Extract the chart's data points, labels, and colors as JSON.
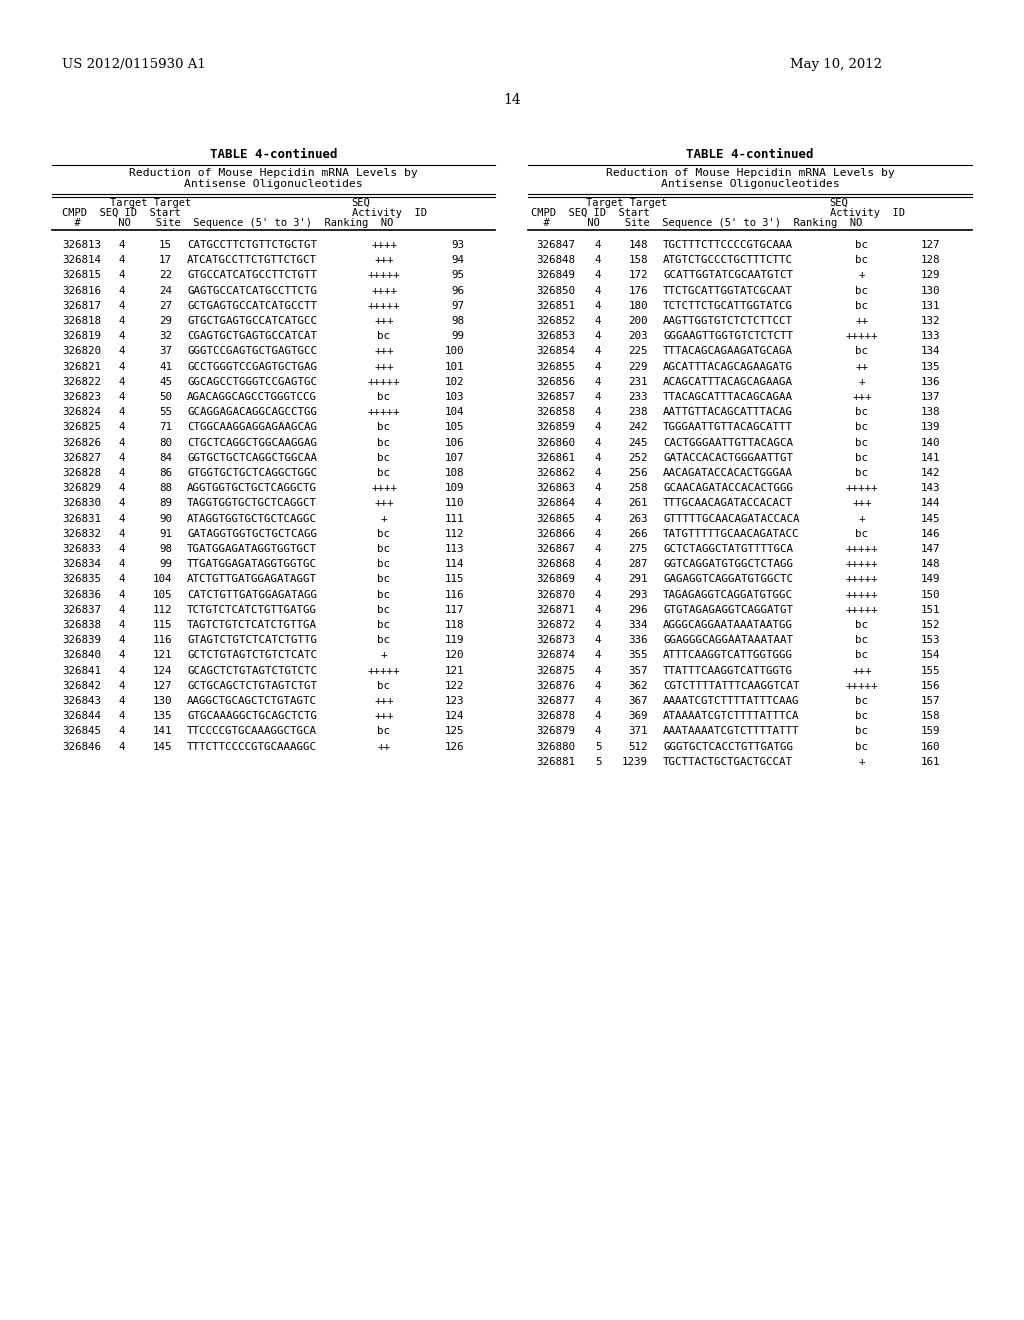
{
  "header_left": "US 2012/0115930 A1",
  "header_right": "May 10, 2012",
  "page_number": "14",
  "table_title": "TABLE 4-continued",
  "table_subtitle1": "Reduction of Mouse Hepcidin mRNA Levels by",
  "table_subtitle2": "Antisense Oligonucleotides",
  "left_data": [
    [
      "326813",
      "4",
      "15",
      "CATGCCTTCTGTTCTGCTGT",
      "++++",
      "93"
    ],
    [
      "326814",
      "4",
      "17",
      "ATCATGCCTTCTGTTCTGCT",
      "+++",
      "94"
    ],
    [
      "326815",
      "4",
      "22",
      "GTGCCATCATGCCTTCTGTT",
      "+++++",
      "95"
    ],
    [
      "326816",
      "4",
      "24",
      "GAGTGCCATCATGCCTTCTG",
      "++++",
      "96"
    ],
    [
      "326817",
      "4",
      "27",
      "GCTGAGTGCCATCATGCCTT",
      "+++++",
      "97"
    ],
    [
      "326818",
      "4",
      "29",
      "GTGCTGAGTGCCATCATGCC",
      "+++",
      "98"
    ],
    [
      "326819",
      "4",
      "32",
      "CGAGTGCTGAGTGCCATCAT",
      "bc",
      "99"
    ],
    [
      "326820",
      "4",
      "37",
      "GGGTCCGAGTGCTGAGTGCC",
      "+++",
      "100"
    ],
    [
      "326821",
      "4",
      "41",
      "GCCTGGGTCCGAGTGCTGAG",
      "+++",
      "101"
    ],
    [
      "326822",
      "4",
      "45",
      "GGCAGCCTGGGTCCGAGTGC",
      "+++++",
      "102"
    ],
    [
      "326823",
      "4",
      "50",
      "AGACAGGCAGCCTGGGTCCG",
      "bc",
      "103"
    ],
    [
      "326824",
      "4",
      "55",
      "GCAGGAGACAGGCAGCCTGG",
      "+++++",
      "104"
    ],
    [
      "326825",
      "4",
      "71",
      "CTGGCAAGGAGGAGAAGCAG",
      "bc",
      "105"
    ],
    [
      "326826",
      "4",
      "80",
      "CTGCTCAGGCTGGCAAGGAG",
      "bc",
      "106"
    ],
    [
      "326827",
      "4",
      "84",
      "GGTGCTGCTCAGGCTGGCAA",
      "bc",
      "107"
    ],
    [
      "326828",
      "4",
      "86",
      "GTGGTGCTGCTCAGGCTGGC",
      "bc",
      "108"
    ],
    [
      "326829",
      "4",
      "88",
      "AGGTGGTGCTGCTCAGGCTG",
      "++++",
      "109"
    ],
    [
      "326830",
      "4",
      "89",
      "TAGGTGGTGCTGCTCAGGCT",
      "+++",
      "110"
    ],
    [
      "326831",
      "4",
      "90",
      "ATAGGTGGTGCTGCTCAGGC",
      "+",
      "111"
    ],
    [
      "326832",
      "4",
      "91",
      "GATAGGTGGTGCTGCTCAGG",
      "bc",
      "112"
    ],
    [
      "326833",
      "4",
      "98",
      "TGATGGAGATAGGTGGTGCT",
      "bc",
      "113"
    ],
    [
      "326834",
      "4",
      "99",
      "TTGATGGAGATAGGTGGTGC",
      "bc",
      "114"
    ],
    [
      "326835",
      "4",
      "104",
      "ATCTGTTGATGGAGATAGGT",
      "bc",
      "115"
    ],
    [
      "326836",
      "4",
      "105",
      "CATCTGTTGATGGAGATAGG",
      "bc",
      "116"
    ],
    [
      "326837",
      "4",
      "112",
      "TCTGTCTCATCTGTTGATGG",
      "bc",
      "117"
    ],
    [
      "326838",
      "4",
      "115",
      "TAGTCTGTCTCATCTGTTGA",
      "bc",
      "118"
    ],
    [
      "326839",
      "4",
      "116",
      "GTAGTCTGTCTCATCTGTTG",
      "bc",
      "119"
    ],
    [
      "326840",
      "4",
      "121",
      "GCTCTGTAGTCTGTCTCATC",
      "+",
      "120"
    ],
    [
      "326841",
      "4",
      "124",
      "GCAGCTCTGTAGTCTGTCTC",
      "+++++",
      "121"
    ],
    [
      "326842",
      "4",
      "127",
      "GCTGCAGCTCTGTAGTCTGT",
      "bc",
      "122"
    ],
    [
      "326843",
      "4",
      "130",
      "AAGGCTGCAGCTCTGTAGTC",
      "+++",
      "123"
    ],
    [
      "326844",
      "4",
      "135",
      "GTGCAAAGGCTGCAGCTCTG",
      "+++",
      "124"
    ],
    [
      "326845",
      "4",
      "141",
      "TTCCCCGTGCAAAGGCTGCA",
      "bc",
      "125"
    ],
    [
      "326846",
      "4",
      "145",
      "TTTCTTCCCCGTGCAAAGGC",
      "++",
      "126"
    ]
  ],
  "right_data": [
    [
      "326847",
      "4",
      "148",
      "TGCTTTCTTCCCCGTGCAAA",
      "bc",
      "127"
    ],
    [
      "326848",
      "4",
      "158",
      "ATGTCTGCCCTGCTTTCTTC",
      "bc",
      "128"
    ],
    [
      "326849",
      "4",
      "172",
      "GCATTGGTATCGCAATGTCT",
      "+",
      "129"
    ],
    [
      "326850",
      "4",
      "176",
      "TTCTGCATTGGTATCGCAAT",
      "bc",
      "130"
    ],
    [
      "326851",
      "4",
      "180",
      "TCTCTTCTGCATTGGTATCG",
      "bc",
      "131"
    ],
    [
      "326852",
      "4",
      "200",
      "AAGTTGGTGTCTCTCTTCCT",
      "++",
      "132"
    ],
    [
      "326853",
      "4",
      "203",
      "GGGAAGTTGGTGTCTCTCTT",
      "+++++",
      "133"
    ],
    [
      "326854",
      "4",
      "225",
      "TTTACAGCAGAAGATGCAGA",
      "bc",
      "134"
    ],
    [
      "326855",
      "4",
      "229",
      "AGCATTTACAGCAGAAGATG",
      "++",
      "135"
    ],
    [
      "326856",
      "4",
      "231",
      "ACAGCATTTACAGCAGAAGA",
      "+",
      "136"
    ],
    [
      "326857",
      "4",
      "233",
      "TTACAGCATTTACAGCAGAA",
      "+++",
      "137"
    ],
    [
      "326858",
      "4",
      "238",
      "AATTGTTACAGCATTTACAG",
      "bc",
      "138"
    ],
    [
      "326859",
      "4",
      "242",
      "TGGGAATTGTTACAGCATTT",
      "bc",
      "139"
    ],
    [
      "326860",
      "4",
      "245",
      "CACTGGGAATTGTTACAGCA",
      "bc",
      "140"
    ],
    [
      "326861",
      "4",
      "252",
      "GATACCACACTGGGAATTGT",
      "bc",
      "141"
    ],
    [
      "326862",
      "4",
      "256",
      "AACAGATACCACACTGGGAA",
      "bc",
      "142"
    ],
    [
      "326863",
      "4",
      "258",
      "GCAACAGATACCACACTGGG",
      "+++++",
      "143"
    ],
    [
      "326864",
      "4",
      "261",
      "TTTGCAACAGATACCACACT",
      "+++",
      "144"
    ],
    [
      "326865",
      "4",
      "263",
      "GTTTTTGCAACAGATACCACA",
      "+",
      "145"
    ],
    [
      "326866",
      "4",
      "266",
      "TATGTTTTTGCAACAGATACC",
      "bc",
      "146"
    ],
    [
      "326867",
      "4",
      "275",
      "GCTCTAGGCTATGTTTTGCA",
      "+++++",
      "147"
    ],
    [
      "326868",
      "4",
      "287",
      "GGTCAGGATGTGGCTCTAGG",
      "+++++",
      "148"
    ],
    [
      "326869",
      "4",
      "291",
      "GAGAGGTCAGGATGTGGCTC",
      "+++++",
      "149"
    ],
    [
      "326870",
      "4",
      "293",
      "TAGAGAGGTCAGGATGTGGC",
      "+++++",
      "150"
    ],
    [
      "326871",
      "4",
      "296",
      "GTGTAGAGAGGTCAGGATGT",
      "+++++",
      "151"
    ],
    [
      "326872",
      "4",
      "334",
      "AGGGCAGGAATAAATAATGG",
      "bc",
      "152"
    ],
    [
      "326873",
      "4",
      "336",
      "GGAGGGCAGGAATAAATAAT",
      "bc",
      "153"
    ],
    [
      "326874",
      "4",
      "355",
      "ATTTCAAGGTCATTGGTGGG",
      "bc",
      "154"
    ],
    [
      "326875",
      "4",
      "357",
      "TTATTTCAAGGTCATTGGTG",
      "+++",
      "155"
    ],
    [
      "326876",
      "4",
      "362",
      "CGTCTTTTATTTCAAGGTCAT",
      "+++++",
      "156"
    ],
    [
      "326877",
      "4",
      "367",
      "AAAATCGTCTTTTATTTCAAG",
      "bc",
      "157"
    ],
    [
      "326878",
      "4",
      "369",
      "ATAAAATCGTCTTTTATTTCA",
      "bc",
      "158"
    ],
    [
      "326879",
      "4",
      "371",
      "AAATAAAATCGTCTTTTATTT",
      "bc",
      "159"
    ],
    [
      "326880",
      "5",
      "512",
      "GGGTGCTCACCTGTTGATGG",
      "bc",
      "160"
    ],
    [
      "326881",
      "5",
      "1239",
      "TGCTTACTGCTGACTGCCAT",
      "+",
      "161"
    ]
  ],
  "background_color": "#ffffff"
}
